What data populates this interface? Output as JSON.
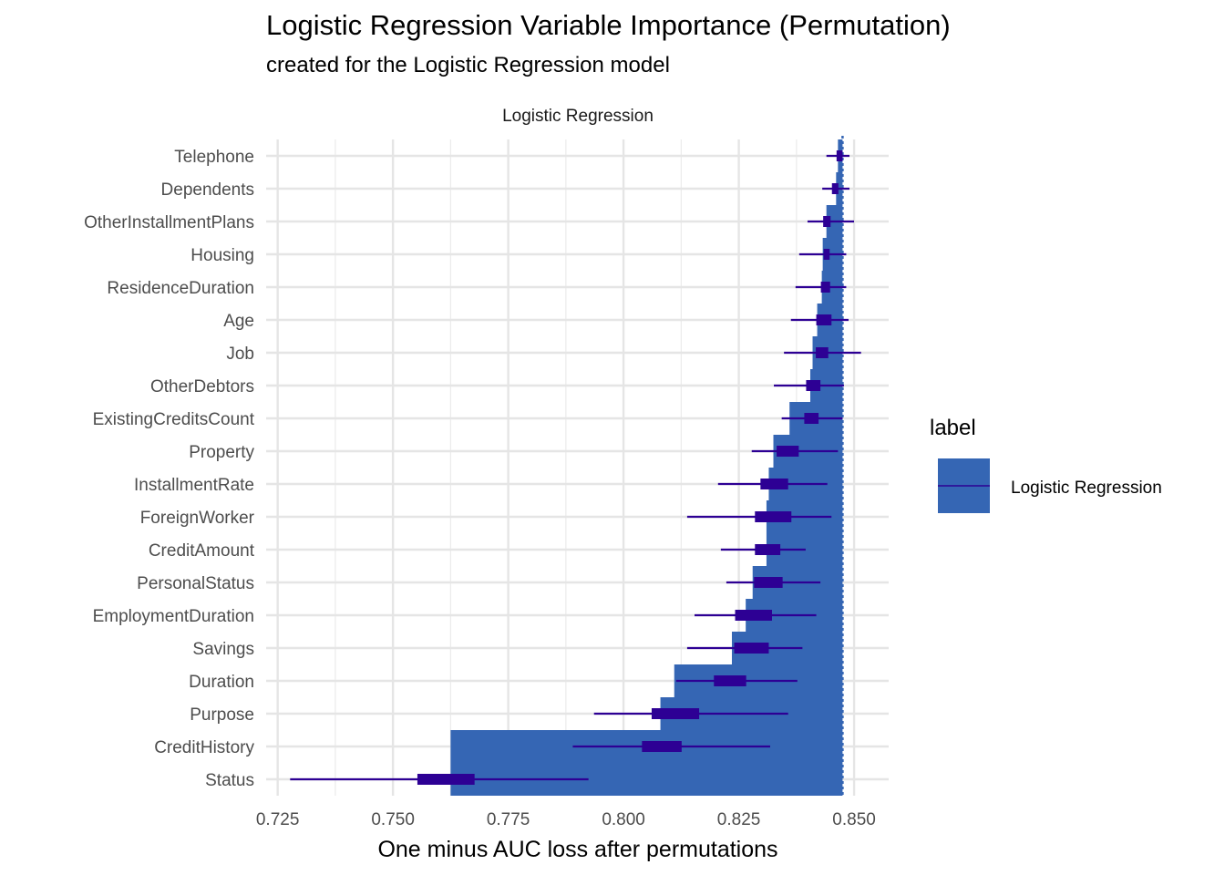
{
  "header": {
    "title": "Logistic Regression Variable Importance (Permutation)",
    "subtitle": "created for the Logistic Regression model"
  },
  "chart_data": {
    "type": "bar",
    "facet_label": "Logistic Regression",
    "xlabel": "One minus AUC loss after permutations",
    "ylabel": "",
    "xlim": [
      0.7225,
      0.8575
    ],
    "x_ticks": [
      "0.725",
      "0.750",
      "0.775",
      "0.800",
      "0.825",
      "0.850"
    ],
    "x_tick_values": [
      0.725,
      0.75,
      0.775,
      0.8,
      0.825,
      0.85
    ],
    "baseline": 0.8475,
    "grid": true,
    "legend": {
      "title": "label",
      "entries": [
        "Logistic Regression"
      ],
      "position": "right"
    },
    "colors": {
      "bar": "#3566b4",
      "interval": "#2d0094",
      "baseline": "#3566b4"
    },
    "categories": [
      "Telephone",
      "Dependents",
      "OtherInstallmentPlans",
      "Housing",
      "ResidenceDuration",
      "Age",
      "Job",
      "OtherDebtors",
      "ExistingCreditsCount",
      "Property",
      "InstallmentRate",
      "ForeignWorker",
      "CreditAmount",
      "PersonalStatus",
      "EmploymentDuration",
      "Savings",
      "Duration",
      "Purpose",
      "CreditHistory",
      "Status"
    ],
    "series": [
      {
        "name": "Logistic Regression",
        "values": [
          0.8465,
          0.8461,
          0.844,
          0.8432,
          0.843,
          0.842,
          0.841,
          0.8405,
          0.836,
          0.8325,
          0.8315,
          0.831,
          0.831,
          0.828,
          0.8265,
          0.8235,
          0.811,
          0.808,
          0.7625,
          0.7625
        ],
        "box_low": [
          0.8462,
          0.8452,
          0.8433,
          0.8434,
          0.8428,
          0.8418,
          0.8417,
          0.8396,
          0.8392,
          0.8332,
          0.8297,
          0.8285,
          0.8285,
          0.8283,
          0.8242,
          0.824,
          0.8196,
          0.8061,
          0.804,
          0.7553
        ],
        "box_high": [
          0.8475,
          0.8466,
          0.8449,
          0.8447,
          0.8448,
          0.8451,
          0.8444,
          0.8427,
          0.8423,
          0.838,
          0.8357,
          0.8364,
          0.834,
          0.8345,
          0.8322,
          0.8315,
          0.8266,
          0.8164,
          0.8126,
          0.7677
        ],
        "whisker_low": [
          0.844,
          0.8431,
          0.8399,
          0.8381,
          0.8373,
          0.8363,
          0.8348,
          0.8326,
          0.8343,
          0.8278,
          0.8205,
          0.8138,
          0.8211,
          0.8223,
          0.8154,
          0.8138,
          0.8114,
          0.7936,
          0.789,
          0.7277
        ],
        "whisker_high": [
          0.849,
          0.849,
          0.85,
          0.8483,
          0.8483,
          0.8488,
          0.8515,
          0.8478,
          0.8475,
          0.8465,
          0.8442,
          0.8451,
          0.8395,
          0.8427,
          0.8418,
          0.8388,
          0.8377,
          0.8357,
          0.8318,
          0.7924
        ]
      }
    ]
  }
}
